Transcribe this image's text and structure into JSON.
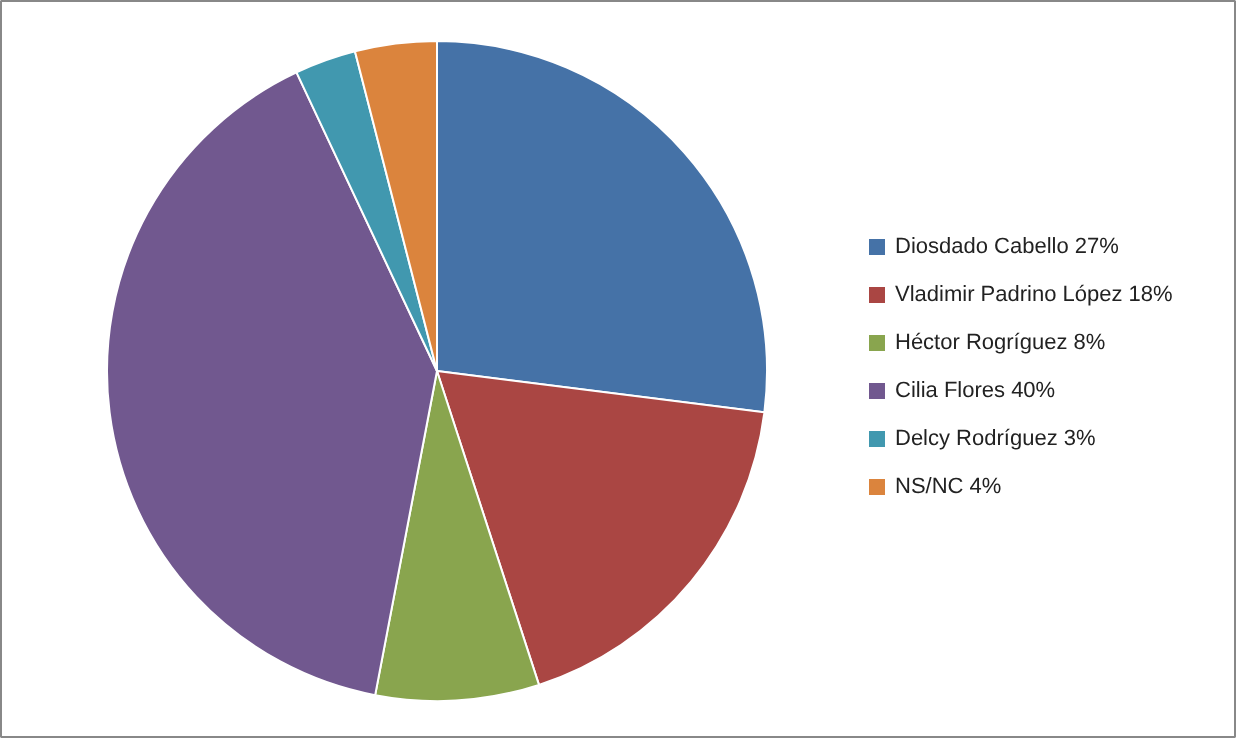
{
  "chart_data": {
    "type": "pie",
    "categories": [
      "Diosdado Cabello 27%",
      "Vladimir Padrino López 18%",
      "Héctor Rogríguez 8%",
      "Cilia Flores 40%",
      "Delcy Rodríguez 3%",
      "NS/NC 4%"
    ],
    "values": [
      27,
      18,
      8,
      40,
      3,
      4
    ],
    "colors": [
      "#4572a7",
      "#aa4643",
      "#89a54e",
      "#71588f",
      "#4198af",
      "#db843d"
    ],
    "legend": "right"
  }
}
